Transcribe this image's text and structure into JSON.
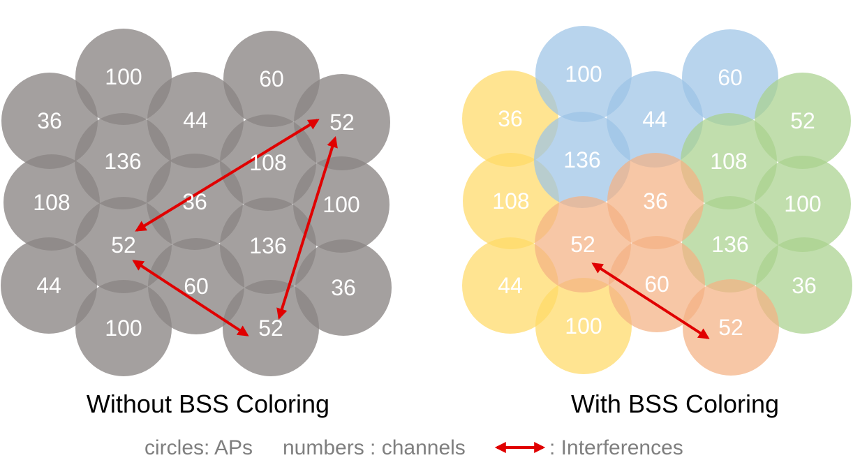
{
  "colors": {
    "gray_ap": "#8a8584",
    "yellow_group": "#ffd966",
    "blue_group": "#9dc3e6",
    "orange_group": "#f4b183",
    "green_group": "#a9d18e",
    "interference_arrow": "#e00000",
    "cell_text": "#ffffff",
    "legend_text": "#7f7f7f"
  },
  "left_panel": {
    "caption": "Without BSS Coloring",
    "cells": [
      {
        "channel": "100"
      },
      {
        "channel": "60"
      },
      {
        "channel": "36"
      },
      {
        "channel": "44"
      },
      {
        "channel": "52"
      },
      {
        "channel": "136"
      },
      {
        "channel": "108"
      },
      {
        "channel": "108"
      },
      {
        "channel": "36"
      },
      {
        "channel": "100"
      },
      {
        "channel": "52"
      },
      {
        "channel": "136"
      },
      {
        "channel": "44"
      },
      {
        "channel": "60"
      },
      {
        "channel": "36"
      },
      {
        "channel": "100"
      },
      {
        "channel": "52"
      }
    ]
  },
  "right_panel": {
    "caption": "With BSS Coloring",
    "cells": [
      {
        "channel": "36",
        "group": "yellow_group"
      },
      {
        "channel": "108",
        "group": "yellow_group"
      },
      {
        "channel": "44",
        "group": "yellow_group"
      },
      {
        "channel": "100",
        "group": "yellow_group"
      },
      {
        "channel": "100",
        "group": "blue_group"
      },
      {
        "channel": "60",
        "group": "blue_group"
      },
      {
        "channel": "44",
        "group": "blue_group"
      },
      {
        "channel": "136",
        "group": "blue_group"
      },
      {
        "channel": "52",
        "group": "green_group"
      },
      {
        "channel": "108",
        "group": "green_group"
      },
      {
        "channel": "100",
        "group": "green_group"
      },
      {
        "channel": "136",
        "group": "green_group"
      },
      {
        "channel": "36",
        "group": "green_group"
      },
      {
        "channel": "36",
        "group": "orange_group"
      },
      {
        "channel": "52",
        "group": "orange_group"
      },
      {
        "channel": "60",
        "group": "orange_group"
      },
      {
        "channel": "52",
        "group": "orange_group"
      }
    ]
  },
  "legend": {
    "circles_text": "circles: APs",
    "numbers_text": "numbers : channels",
    "arrow_text": ": Interferences"
  }
}
